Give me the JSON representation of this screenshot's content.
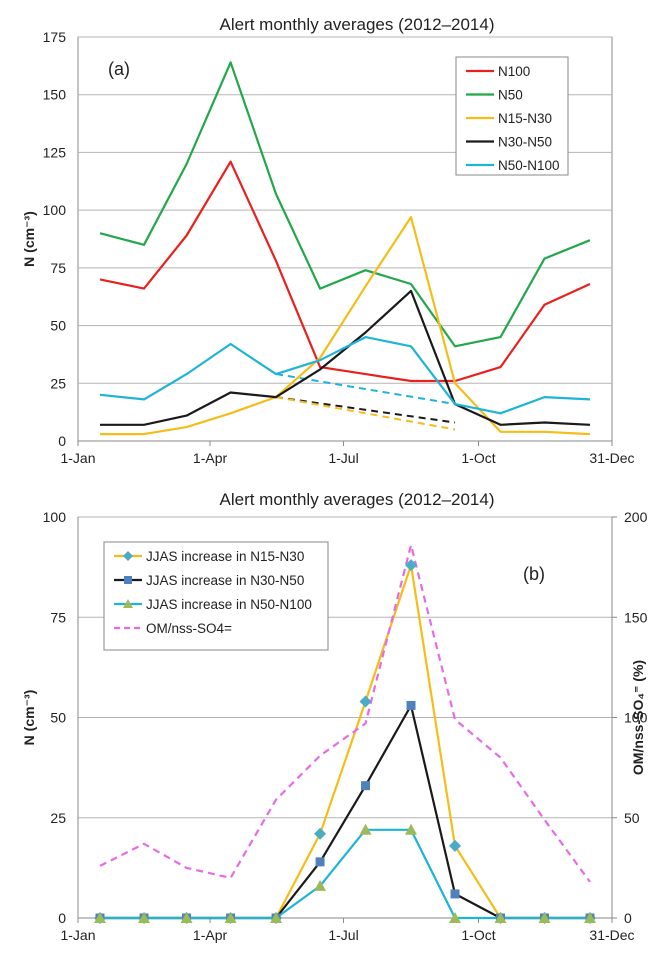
{
  "chart_data": [
    {
      "type": "line",
      "title": "Alert monthly averages (2012–2014)",
      "panel_label": "(a)",
      "ylabel": "N (cm⁻³)",
      "ylim": [
        0,
        175
      ],
      "yticks": [
        0,
        25,
        50,
        75,
        100,
        125,
        150,
        175
      ],
      "xlim": [
        1,
        365
      ],
      "xticks": [
        {
          "day": 1,
          "label": "1-Jan"
        },
        {
          "day": 91,
          "label": "1-Apr"
        },
        {
          "day": 182,
          "label": "1-Jul"
        },
        {
          "day": 274,
          "label": "1-Oct"
        },
        {
          "day": 365,
          "label": "31-Dec"
        }
      ],
      "x": [
        16,
        46,
        75,
        105,
        136,
        166,
        197,
        228,
        258,
        289,
        319,
        350
      ],
      "grid": "horizontal",
      "legend_position": "top-right",
      "series": [
        {
          "name": "N100",
          "color": "#e8211e",
          "values": [
            70,
            66,
            89,
            121,
            78,
            32,
            29,
            26,
            26,
            32,
            59,
            68
          ]
        },
        {
          "name": "N50",
          "color": "#22a84b",
          "values": [
            90,
            85,
            120,
            164,
            107,
            66,
            74,
            68,
            41,
            45,
            79,
            87
          ]
        },
        {
          "name": "N15-N30",
          "color": "#f5bd19",
          "values": [
            3,
            3,
            6,
            12,
            19,
            36,
            67,
            97,
            25,
            4,
            4,
            3
          ]
        },
        {
          "name": "N30-N50",
          "color": "#1a1a1a",
          "values": [
            7,
            7,
            11,
            21,
            19,
            31,
            47,
            65,
            16,
            7,
            8,
            7
          ]
        },
        {
          "name": "N50-N100",
          "color": "#1eb4d8",
          "values": [
            20,
            18,
            29,
            42,
            29,
            35,
            45,
            41,
            16,
            12,
            19,
            18
          ]
        }
      ],
      "baselines": [
        {
          "color": "#1eb4d8",
          "from": [
            136,
            29
          ],
          "to": [
            258,
            16
          ]
        },
        {
          "color": "#1a1a1a",
          "from": [
            136,
            19
          ],
          "to": [
            258,
            8
          ]
        },
        {
          "color": "#f5bd19",
          "from": [
            136,
            19
          ],
          "to": [
            258,
            5
          ]
        }
      ]
    },
    {
      "type": "line",
      "title": "Alert monthly averages (2012–2014)",
      "panel_label": "(b)",
      "ylabel": "N (cm⁻³)",
      "y2label": "OM/nss-SO₄⁼ (%)",
      "ylim": [
        0,
        100
      ],
      "yticks": [
        0,
        25,
        50,
        75,
        100
      ],
      "y2lim": [
        0,
        200
      ],
      "y2ticks": [
        0,
        50,
        100,
        150,
        200
      ],
      "xlim": [
        1,
        365
      ],
      "xticks": [
        {
          "day": 1,
          "label": "1-Jan"
        },
        {
          "day": 91,
          "label": "1-Apr"
        },
        {
          "day": 182,
          "label": "1-Jul"
        },
        {
          "day": 274,
          "label": "1-Oct"
        },
        {
          "day": 365,
          "label": "31-Dec"
        }
      ],
      "x": [
        16,
        46,
        75,
        105,
        136,
        166,
        197,
        228,
        258,
        289,
        319,
        350
      ],
      "grid": "horizontal",
      "legend_position": "top-left",
      "series": [
        {
          "name": "JJAS increase in N15-N30",
          "color": "#f5bd19",
          "marker": "diamond",
          "marker_color": "#4aacc5",
          "values": [
            0,
            0,
            0,
            0,
            0,
            21,
            54,
            88,
            18,
            0,
            0,
            0
          ]
        },
        {
          "name": "JJAS increase in N30-N50",
          "color": "#1a1a1a",
          "marker": "square",
          "marker_color": "#4f81bd",
          "values": [
            0,
            0,
            0,
            0,
            0,
            14,
            33,
            53,
            6,
            0,
            0,
            0
          ]
        },
        {
          "name": "JJAS increase in N50-N100",
          "color": "#1eb4d8",
          "marker": "triangle",
          "marker_color": "#9bbb59",
          "values": [
            0,
            0,
            0,
            0,
            0,
            8,
            22,
            22,
            0,
            0,
            0,
            0
          ]
        },
        {
          "name": "OM/nss-SO4=",
          "color": "#e86be6",
          "dash": true,
          "axis": "right",
          "values": [
            26,
            37,
            25,
            20,
            59,
            81,
            97,
            186,
            99,
            80,
            49,
            18
          ]
        }
      ]
    }
  ]
}
